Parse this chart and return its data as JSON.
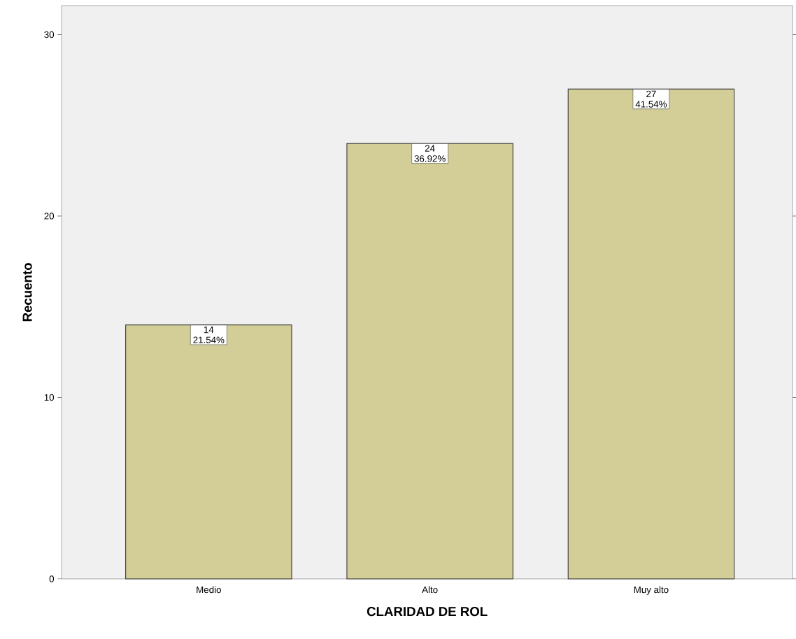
{
  "chart_data": {
    "type": "bar",
    "xlabel": "CLARIDAD DE ROL",
    "ylabel": "Recuento",
    "categories": [
      "Medio",
      "Alto",
      "Muy alto"
    ],
    "values": [
      14,
      24,
      27
    ],
    "value_labels": [
      "14 21.54%",
      "24 36.92%",
      "27 41.54%"
    ],
    "color": "#d3ce97",
    "ylim": [
      0,
      31.6
    ],
    "yticks": [
      0,
      10,
      20,
      30
    ]
  }
}
